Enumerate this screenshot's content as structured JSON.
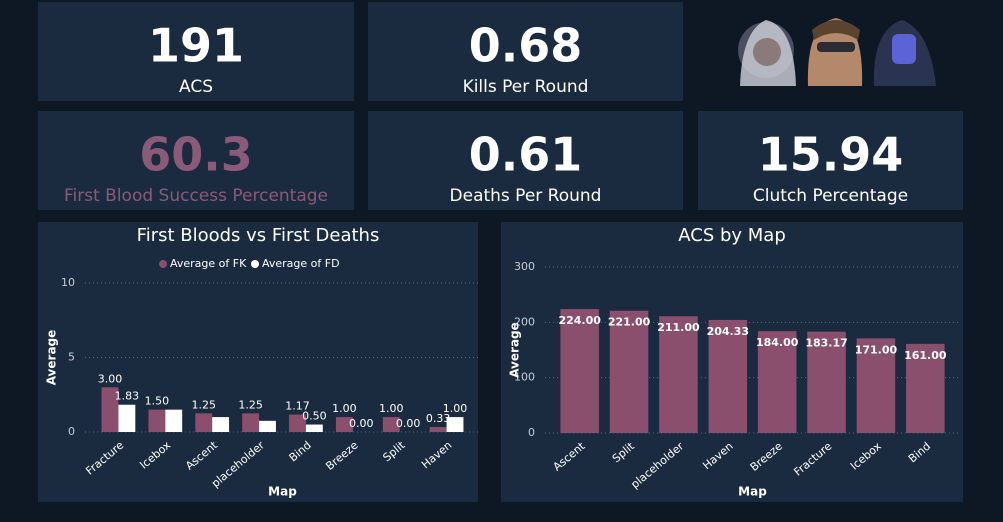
{
  "cards": [
    {
      "value": "191",
      "label": "ACS",
      "color": "#ffffff"
    },
    {
      "value": "0.68",
      "label": "Kills Per Round",
      "color": "#ffffff"
    },
    {
      "value": "60.3",
      "label": "First Blood Success Percentage",
      "color": "#8b5a78"
    },
    {
      "value": "0.61",
      "label": "Deaths Per Round",
      "color": "#ffffff"
    },
    {
      "value": "15.94",
      "label": "Clutch Percentage",
      "color": "#ffffff"
    }
  ],
  "chart_data": [
    {
      "type": "bar",
      "title": "First Bloods vs First Deaths",
      "x_label": "Map",
      "y_label": "Average",
      "categories": [
        "Fracture",
        "Icebox",
        "Ascent",
        "placeholder",
        "Bind",
        "Breeze",
        "Split",
        "Haven"
      ],
      "series": [
        {
          "name": "Average of FK",
          "color": "#8b4f6e",
          "values": [
            3.0,
            1.5,
            1.25,
            1.25,
            1.17,
            1.0,
            1.0,
            0.33
          ],
          "value_labels": [
            "3.00",
            "1.50",
            "1.25",
            "1.25",
            "1.17",
            "1.00",
            "1.00",
            "0.33"
          ]
        },
        {
          "name": "Average of FD",
          "color": "#ffffff",
          "values": [
            1.83,
            1.5,
            1.0,
            0.75,
            0.5,
            0.0,
            0.0,
            1.0
          ],
          "value_labels": [
            "1.83",
            null,
            null,
            null,
            "0.50",
            "0.00",
            "0.00",
            "1.00"
          ]
        }
      ],
      "ylim": [
        0,
        10
      ],
      "yticks": [
        0,
        5,
        10
      ],
      "grid": true,
      "legend": "top"
    },
    {
      "type": "bar",
      "title": "ACS by Map",
      "x_label": "Map",
      "y_label": "Average",
      "categories": [
        "Ascent",
        "Split",
        "placeholder",
        "Haven",
        "Breeze",
        "Fracture",
        "Icebox",
        "Bind"
      ],
      "values": [
        224.0,
        221.0,
        211.0,
        204.33,
        184.0,
        183.17,
        171.0,
        161.0
      ],
      "value_labels": [
        "224.00",
        "221.00",
        "211.00",
        "204.33",
        "184.00",
        "183.17",
        "171.00",
        "161.00"
      ],
      "color": "#8b4f6e",
      "ylim": [
        0,
        300
      ],
      "yticks": [
        0,
        100,
        200,
        300
      ],
      "grid": true
    }
  ]
}
